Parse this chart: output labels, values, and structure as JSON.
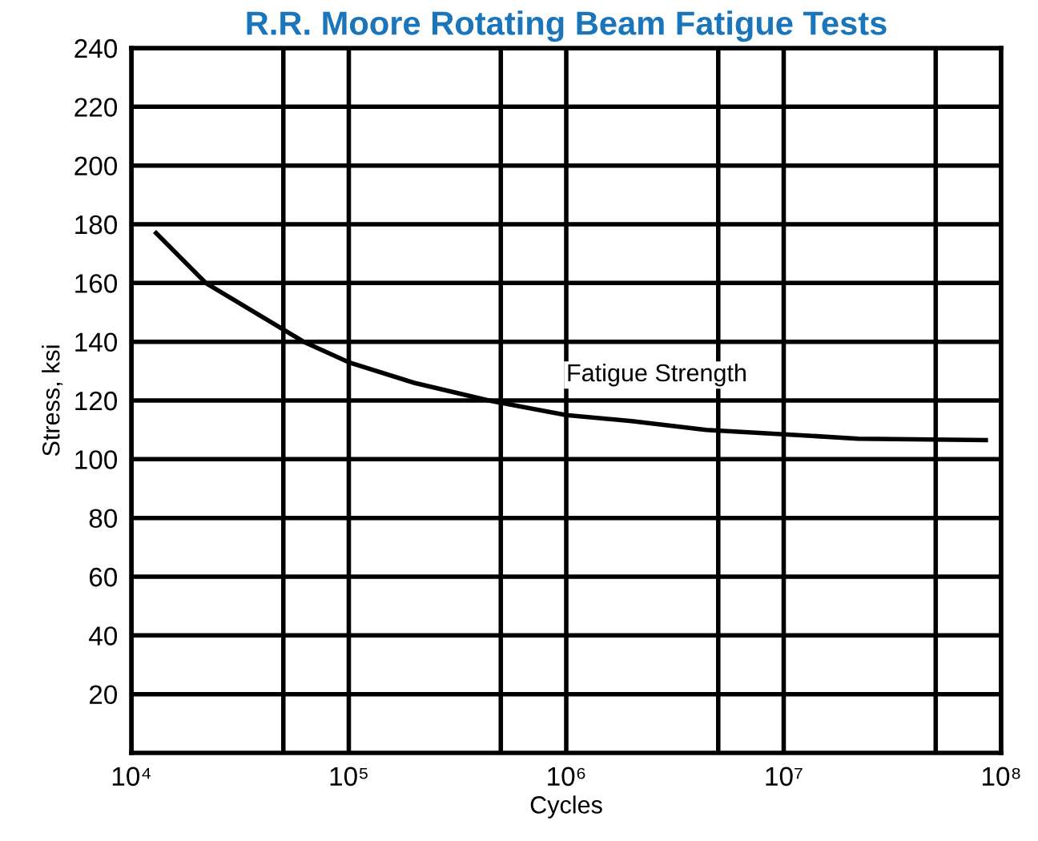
{
  "chart_data": {
    "type": "line",
    "title": "R.R. Moore Rotating Beam Fatigue Tests",
    "xlabel": "Cycles",
    "ylabel": "Stress, ksi",
    "log": "x",
    "x": [
      13000,
      22000,
      62000,
      100000,
      200000,
      440000,
      1000000,
      2000000,
      4400000,
      10000000,
      22000000,
      85000000
    ],
    "series": [
      {
        "color": "#000000",
        "values": [
          177,
          160,
          140,
          133,
          126,
          120,
          115,
          113,
          110,
          108.5,
          107,
          106.5
        ]
      }
    ],
    "xlim": [
      10000,
      100000000
    ],
    "xticks": [
      {
        "value": 10000,
        "label": "10⁴"
      },
      {
        "value": 50000,
        "label": null
      },
      {
        "value": 100000,
        "label": "10⁵"
      },
      {
        "value": 500000,
        "label": null
      },
      {
        "value": 1000000,
        "label": "10⁶"
      },
      {
        "value": 5000000,
        "label": null
      },
      {
        "value": 10000000,
        "label": "10⁷"
      },
      {
        "value": 50000000,
        "label": null
      },
      {
        "value": 100000000,
        "label": "10⁸"
      }
    ],
    "ylim": [
      0,
      240
    ],
    "yticks": [
      20,
      40,
      60,
      80,
      100,
      120,
      140,
      160,
      180,
      200,
      220,
      240
    ],
    "grid": true,
    "marker": "none",
    "line_style": "solid",
    "annotations": [
      "Fatigue Strength"
    ]
  }
}
